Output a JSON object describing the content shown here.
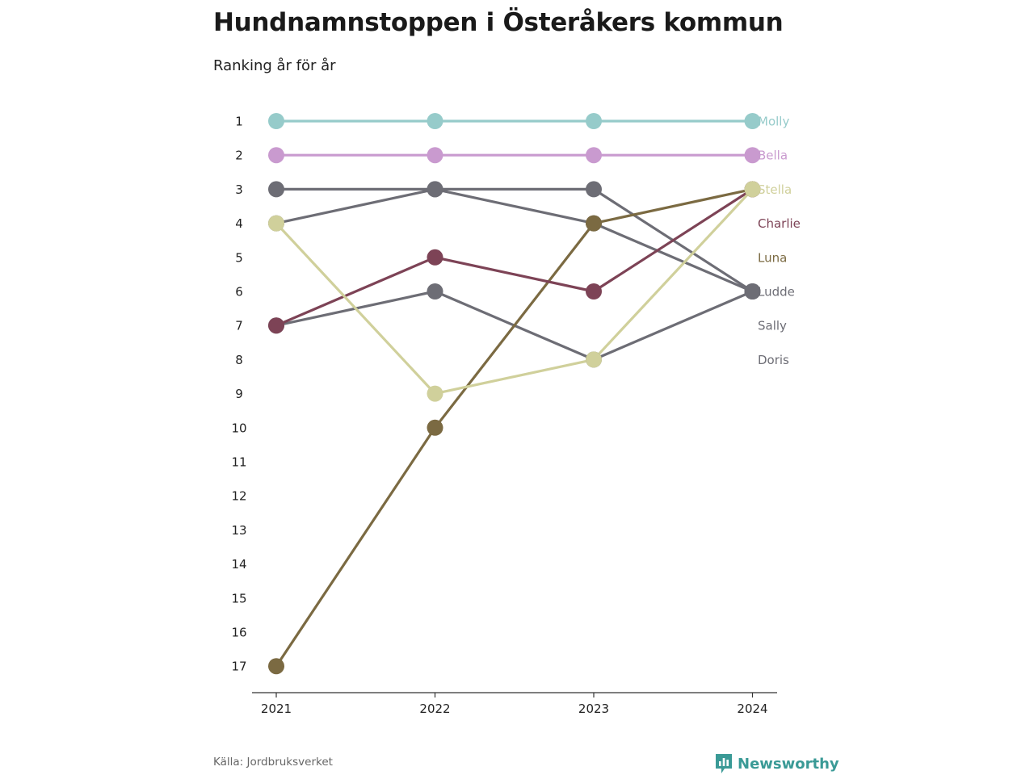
{
  "header": {
    "title": "Hundnamnstoppen i Österåkers kommun",
    "subtitle": "Ranking år för år"
  },
  "footer": {
    "source": "Källa: Jordbruksverket",
    "brand": "Newsworthy",
    "brand_icon": "chart-bars-icon"
  },
  "colors": {
    "Molly": "#96cbca",
    "Bella": "#c99acf",
    "Stella": "#d0d09b",
    "Charlie": "#7d4356",
    "Luna": "#7b6a42",
    "Ludde": "#6d6d75",
    "Sally": "#6d6d75",
    "Doris": "#6d6d75",
    "axis": "#333333",
    "brand": "#3a9a96"
  },
  "chart_data": {
    "type": "line",
    "chart_kind": "bump",
    "x": [
      "2021",
      "2022",
      "2023",
      "2024"
    ],
    "y_ticks": [
      "1",
      "2",
      "3",
      "4",
      "5",
      "6",
      "7",
      "8",
      "9",
      "10",
      "11",
      "12",
      "13",
      "14",
      "15",
      "16",
      "17"
    ],
    "ylim": [
      1,
      17
    ],
    "y_reversed": true,
    "series": [
      {
        "name": "Doris",
        "values": [
          3,
          3,
          3,
          6
        ]
      },
      {
        "name": "Sally",
        "values": [
          7,
          6,
          8,
          6
        ]
      },
      {
        "name": "Ludde",
        "values": [
          4,
          3,
          4,
          6
        ]
      },
      {
        "name": "Luna",
        "values": [
          17,
          10,
          4,
          3
        ]
      },
      {
        "name": "Charlie",
        "values": [
          7,
          5,
          6,
          3
        ]
      },
      {
        "name": "Stella",
        "values": [
          4,
          9,
          8,
          3
        ]
      },
      {
        "name": "Bella",
        "values": [
          2,
          2,
          2,
          2
        ]
      },
      {
        "name": "Molly",
        "values": [
          1,
          1,
          1,
          1
        ]
      }
    ],
    "labels": [
      {
        "name": "Molly",
        "text": "Molly"
      },
      {
        "name": "Bella",
        "text": "Bella"
      },
      {
        "name": "Stella",
        "text": "Stella"
      },
      {
        "name": "Charlie",
        "text": "Charlie"
      },
      {
        "name": "Luna",
        "text": "Luna"
      },
      {
        "name": "Ludde",
        "text": "Ludde"
      },
      {
        "name": "Sally",
        "text": "Sally"
      },
      {
        "name": "Doris",
        "text": "Doris"
      }
    ],
    "grid": false,
    "legend": "direct labels right"
  }
}
